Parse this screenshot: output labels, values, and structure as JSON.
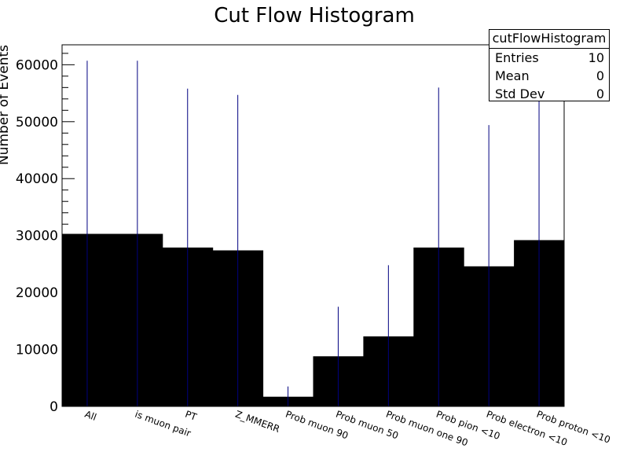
{
  "chart_data": {
    "type": "bar",
    "title": "Cut Flow Histogram",
    "ylabel": "Number of Events",
    "xlabel": "",
    "ylim": [
      0,
      63500
    ],
    "yticks": [
      0,
      10000,
      20000,
      30000,
      40000,
      50000,
      60000
    ],
    "ytick_labels": [
      "0",
      "10000",
      "20000",
      "30000",
      "40000",
      "50000",
      "60000"
    ],
    "categories": [
      "All",
      "is muon pair",
      "PT",
      "Z_MMERR",
      "Prob muon 90",
      "Prob muon 50",
      "Prob muon one 90",
      "Prob pion <10",
      "Prob electron <10",
      "Prob proton <10"
    ],
    "values": [
      30300,
      30300,
      27900,
      27400,
      1700,
      8800,
      12300,
      27900,
      24600,
      29200
    ],
    "error_upper": [
      60700,
      60700,
      55800,
      54700,
      3500,
      17500,
      24800,
      56000,
      49400,
      58500
    ],
    "fill_color": "#000000",
    "error_color": "#000080",
    "grid": false
  },
  "stats": {
    "name": "cutFlowHistogram",
    "rows": [
      {
        "label": "Entries",
        "value": "10"
      },
      {
        "label": "Mean",
        "value": "0"
      },
      {
        "label": "Std Dev",
        "value": "0"
      }
    ]
  }
}
